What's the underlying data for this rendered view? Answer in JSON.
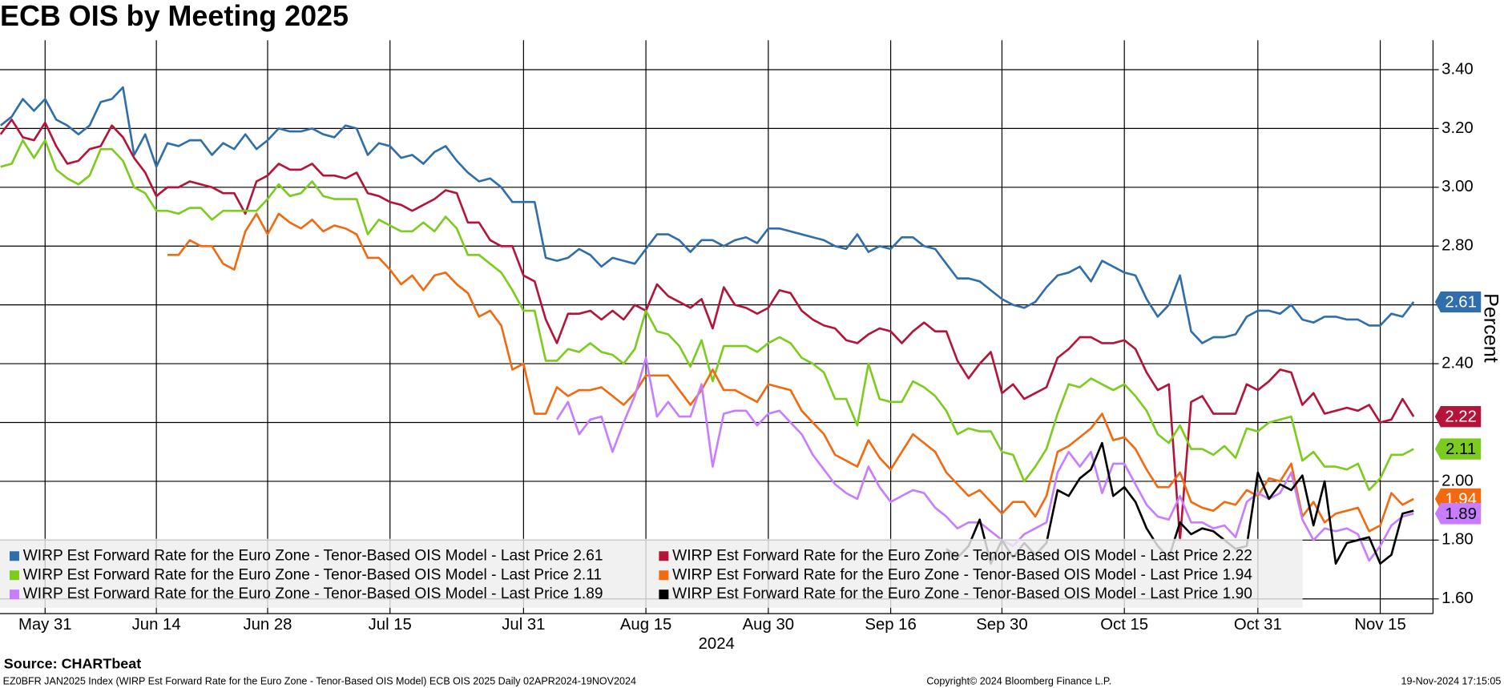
{
  "chart_data": {
    "type": "line",
    "title": "ECB OIS by Meeting 2025",
    "ylabel": "Percent",
    "xlabel": "2024",
    "source": "Source: CHARTbeat",
    "footnote": "EZ0BFR JAN2025 Index (WIRP Est Forward Rate for the Euro Zone - Tenor-Based OIS Model) ECB OIS 2025  Daily 02APR2024-19NOV2024",
    "copyright": "Copyright© 2024 Bloomberg Finance L.P.",
    "timestamp": "19-Nov-2024 17:15:05",
    "yaxis_side": "right",
    "grid": true,
    "legend": "bottom-left",
    "ylim": [
      1.55,
      3.5
    ],
    "yticks": [
      {
        "value": 1.6,
        "label": "1.60"
      },
      {
        "value": 1.8,
        "label": "1.80"
      },
      {
        "value": 2.0,
        "label": "2.00"
      },
      {
        "value": 2.2,
        "label": "2.20"
      },
      {
        "value": 2.4,
        "label": "2.40"
      },
      {
        "value": 2.6,
        "label": "2.60"
      },
      {
        "value": 2.8,
        "label": "2.80"
      },
      {
        "value": 3.0,
        "label": "3.00"
      },
      {
        "value": 3.2,
        "label": "3.20"
      },
      {
        "value": 3.4,
        "label": "3.40"
      }
    ],
    "categories": [
      null,
      null,
      null,
      null,
      "May 31",
      null,
      null,
      null,
      null,
      null,
      null,
      null,
      null,
      null,
      "Jun 14",
      null,
      null,
      null,
      null,
      null,
      null,
      null,
      null,
      null,
      "Jun 28",
      null,
      null,
      null,
      null,
      null,
      null,
      null,
      null,
      null,
      null,
      "Jul 15",
      null,
      null,
      null,
      null,
      null,
      null,
      null,
      null,
      null,
      null,
      null,
      "Jul 31",
      null,
      null,
      null,
      null,
      null,
      null,
      null,
      null,
      null,
      null,
      "Aug 15",
      null,
      null,
      null,
      null,
      null,
      null,
      null,
      null,
      null,
      null,
      "Aug 30",
      null,
      null,
      null,
      null,
      null,
      null,
      null,
      null,
      null,
      null,
      "Sep 16",
      null,
      null,
      null,
      null,
      null,
      null,
      null,
      null,
      null,
      "Sep 30",
      null,
      null,
      null,
      null,
      null,
      null,
      null,
      null,
      null,
      null,
      "Oct 15",
      null,
      null,
      null,
      null,
      null,
      null,
      null,
      null,
      null,
      null,
      null,
      "Oct 31",
      null,
      null,
      null,
      null,
      null,
      null,
      null,
      null,
      null,
      null,
      "Nov 15",
      null,
      null,
      null
    ],
    "series": [
      {
        "name": "WIRP Est Forward Rate for the Euro Zone - Tenor-Based OIS Model - Last Price 2.61",
        "color": "#2f6eaa",
        "last_value_tag": true,
        "values": [
          3.21,
          3.24,
          3.3,
          3.26,
          3.3,
          3.23,
          3.21,
          3.18,
          3.21,
          3.29,
          3.3,
          3.34,
          3.11,
          3.18,
          3.07,
          3.15,
          3.14,
          3.16,
          3.16,
          3.11,
          3.15,
          3.13,
          3.18,
          3.13,
          3.16,
          3.2,
          3.19,
          3.19,
          3.2,
          3.18,
          3.17,
          3.21,
          3.2,
          3.11,
          3.15,
          3.14,
          3.1,
          3.11,
          3.08,
          3.12,
          3.14,
          3.09,
          3.05,
          3.02,
          3.03,
          3.0,
          2.95,
          2.95,
          2.95,
          2.76,
          2.75,
          2.76,
          2.79,
          2.77,
          2.73,
          2.76,
          2.75,
          2.74,
          2.79,
          2.84,
          2.84,
          2.82,
          2.78,
          2.82,
          2.82,
          2.8,
          2.82,
          2.83,
          2.81,
          2.86,
          2.86,
          2.85,
          2.84,
          2.83,
          2.82,
          2.8,
          2.79,
          2.84,
          2.78,
          2.8,
          2.79,
          2.83,
          2.83,
          2.8,
          2.79,
          2.74,
          2.69,
          2.69,
          2.68,
          2.65,
          2.62,
          2.6,
          2.59,
          2.61,
          2.66,
          2.7,
          2.71,
          2.73,
          2.68,
          2.75,
          2.73,
          2.71,
          2.7,
          2.62,
          2.56,
          2.6,
          2.7,
          2.51,
          2.47,
          2.49,
          2.49,
          2.5,
          2.56,
          2.58,
          2.58,
          2.57,
          2.6,
          2.55,
          2.54,
          2.56,
          2.56,
          2.55,
          2.55,
          2.53,
          2.53,
          2.57,
          2.56,
          2.61
        ]
      },
      {
        "name": "WIRP Est Forward Rate for the Euro Zone - Tenor-Based OIS Model - Last Price 2.22",
        "color": "#b5143a",
        "last_value_tag": true,
        "values": [
          3.18,
          3.23,
          3.17,
          3.16,
          3.22,
          3.14,
          3.08,
          3.09,
          3.13,
          3.14,
          3.21,
          3.17,
          3.1,
          3.05,
          2.97,
          3.0,
          3.0,
          3.02,
          3.01,
          3.0,
          2.98,
          2.98,
          2.91,
          3.02,
          3.04,
          3.08,
          3.06,
          3.06,
          3.08,
          3.04,
          3.04,
          3.03,
          3.05,
          2.98,
          2.97,
          2.95,
          2.94,
          2.92,
          2.94,
          2.96,
          2.99,
          2.98,
          2.88,
          2.88,
          2.82,
          2.8,
          2.8,
          2.7,
          2.68,
          2.55,
          2.47,
          2.57,
          2.57,
          2.58,
          2.55,
          2.58,
          2.55,
          2.6,
          2.58,
          2.67,
          2.63,
          2.61,
          2.59,
          2.62,
          2.52,
          2.66,
          2.6,
          2.59,
          2.57,
          2.59,
          2.65,
          2.64,
          2.58,
          2.55,
          2.53,
          2.52,
          2.48,
          2.47,
          2.5,
          2.52,
          2.51,
          2.47,
          2.51,
          2.54,
          2.51,
          2.51,
          2.41,
          2.35,
          2.4,
          2.44,
          2.3,
          2.33,
          2.28,
          2.3,
          2.32,
          2.42,
          2.45,
          2.49,
          2.49,
          2.47,
          2.47,
          2.48,
          2.45,
          2.37,
          2.31,
          2.33,
          1.8,
          2.27,
          2.29,
          2.23,
          2.23,
          2.23,
          2.33,
          2.31,
          2.34,
          2.38,
          2.37,
          2.26,
          2.3,
          2.23,
          2.24,
          2.25,
          2.24,
          2.26,
          2.2,
          2.21,
          2.28,
          2.22
        ]
      },
      {
        "name": "WIRP Est Forward Rate for the Euro Zone - Tenor-Based OIS Model - Last Price 2.11",
        "color": "#7ccc1e",
        "last_value_tag": true,
        "values": [
          3.07,
          3.08,
          3.16,
          3.1,
          3.16,
          3.06,
          3.03,
          3.01,
          3.04,
          3.13,
          3.13,
          3.09,
          3.0,
          2.98,
          2.92,
          2.92,
          2.91,
          2.93,
          2.93,
          2.89,
          2.92,
          2.92,
          2.92,
          2.92,
          2.96,
          3.01,
          2.97,
          2.98,
          3.02,
          2.97,
          2.96,
          2.96,
          2.96,
          2.84,
          2.89,
          2.87,
          2.85,
          2.85,
          2.88,
          2.85,
          2.9,
          2.86,
          2.77,
          2.77,
          2.74,
          2.71,
          2.65,
          2.58,
          2.58,
          2.41,
          2.41,
          2.45,
          2.44,
          2.47,
          2.44,
          2.43,
          2.4,
          2.45,
          2.58,
          2.51,
          2.5,
          2.46,
          2.39,
          2.48,
          2.34,
          2.46,
          2.46,
          2.46,
          2.44,
          2.47,
          2.49,
          2.47,
          2.42,
          2.4,
          2.37,
          2.28,
          2.28,
          2.19,
          2.4,
          2.28,
          2.27,
          2.27,
          2.34,
          2.32,
          2.29,
          2.24,
          2.16,
          2.18,
          2.17,
          2.17,
          2.1,
          2.09,
          2.0,
          2.05,
          2.11,
          2.23,
          2.33,
          2.32,
          2.35,
          2.33,
          2.31,
          2.33,
          2.29,
          2.24,
          2.16,
          2.13,
          2.19,
          2.11,
          2.11,
          2.09,
          2.12,
          2.08,
          2.18,
          2.17,
          2.2,
          2.21,
          2.22,
          2.07,
          2.1,
          2.05,
          2.05,
          2.04,
          2.06,
          1.97,
          2.01,
          2.09,
          2.09,
          2.11
        ]
      },
      {
        "name": "WIRP Est Forward Rate for the Euro Zone - Tenor-Based OIS Model - Last Price 1.94",
        "color": "#f26a10",
        "last_value_tag": true,
        "values": [
          null,
          null,
          null,
          null,
          null,
          null,
          null,
          null,
          null,
          null,
          null,
          null,
          null,
          null,
          null,
          2.77,
          2.77,
          2.82,
          2.8,
          2.8,
          2.74,
          2.72,
          2.85,
          2.91,
          2.84,
          2.91,
          2.88,
          2.86,
          2.89,
          2.85,
          2.87,
          2.86,
          2.84,
          2.76,
          2.76,
          2.72,
          2.67,
          2.7,
          2.65,
          2.7,
          2.71,
          2.67,
          2.64,
          2.56,
          2.58,
          2.53,
          2.38,
          2.4,
          2.23,
          2.23,
          2.32,
          2.29,
          2.31,
          2.31,
          2.32,
          2.29,
          2.26,
          2.3,
          2.36,
          2.36,
          2.36,
          2.31,
          2.26,
          2.31,
          2.38,
          2.31,
          2.31,
          2.29,
          2.27,
          2.33,
          2.32,
          2.31,
          2.24,
          2.2,
          2.16,
          2.09,
          2.07,
          2.05,
          2.14,
          2.08,
          2.04,
          2.1,
          2.16,
          2.13,
          2.1,
          2.03,
          1.99,
          1.95,
          1.97,
          1.93,
          1.89,
          1.93,
          1.93,
          1.88,
          1.95,
          2.1,
          2.12,
          2.15,
          2.18,
          2.23,
          2.14,
          2.15,
          2.11,
          2.04,
          1.98,
          1.98,
          2.03,
          1.93,
          1.91,
          1.9,
          1.93,
          1.92,
          1.97,
          1.95,
          2.01,
          2.0,
          2.06,
          1.88,
          1.93,
          1.86,
          1.89,
          1.9,
          1.91,
          1.83,
          1.85,
          1.96,
          1.92,
          1.94
        ]
      },
      {
        "name": "WIRP Est Forward Rate for the Euro Zone - Tenor-Based OIS Model - Last Price 1.89",
        "color": "#c77dff",
        "last_value_tag": true,
        "values": [
          null,
          null,
          null,
          null,
          null,
          null,
          null,
          null,
          null,
          null,
          null,
          null,
          null,
          null,
          null,
          null,
          null,
          null,
          null,
          null,
          null,
          null,
          null,
          null,
          null,
          null,
          null,
          null,
          null,
          null,
          null,
          null,
          null,
          null,
          null,
          null,
          null,
          null,
          null,
          null,
          null,
          null,
          null,
          null,
          null,
          null,
          null,
          null,
          null,
          null,
          2.21,
          2.27,
          2.16,
          2.21,
          2.22,
          2.1,
          2.2,
          2.29,
          2.42,
          2.22,
          2.27,
          2.22,
          2.22,
          2.33,
          2.05,
          2.23,
          2.24,
          2.24,
          2.19,
          2.23,
          2.24,
          2.2,
          2.16,
          2.09,
          2.04,
          1.99,
          1.96,
          1.94,
          2.05,
          1.98,
          1.93,
          1.95,
          1.97,
          1.96,
          1.91,
          1.88,
          1.84,
          1.86,
          1.86,
          1.83,
          1.8,
          1.78,
          1.82,
          1.84,
          1.86,
          2.03,
          2.1,
          2.05,
          2.1,
          1.96,
          2.06,
          2.06,
          1.99,
          1.92,
          1.88,
          1.87,
          1.95,
          1.86,
          1.86,
          1.84,
          1.85,
          1.81,
          1.93,
          1.96,
          1.94,
          1.96,
          2.03,
          1.87,
          1.8,
          1.84,
          1.83,
          1.84,
          1.82,
          1.73,
          1.78,
          1.85,
          1.88,
          1.89
        ]
      },
      {
        "name": "WIRP Est Forward Rate for the Euro Zone - Tenor-Based OIS Model - Last Price 1.90",
        "color": "#000000",
        "last_value_tag": false,
        "values": [
          null,
          null,
          null,
          null,
          null,
          null,
          null,
          null,
          null,
          null,
          null,
          null,
          null,
          null,
          null,
          null,
          null,
          null,
          null,
          null,
          null,
          null,
          null,
          null,
          null,
          null,
          null,
          null,
          null,
          null,
          null,
          null,
          null,
          null,
          null,
          null,
          null,
          null,
          null,
          null,
          null,
          null,
          null,
          null,
          null,
          null,
          null,
          null,
          null,
          null,
          null,
          null,
          null,
          null,
          null,
          null,
          null,
          null,
          null,
          null,
          null,
          null,
          null,
          null,
          null,
          null,
          null,
          null,
          null,
          null,
          null,
          null,
          null,
          null,
          null,
          null,
          null,
          null,
          null,
          null,
          null,
          null,
          null,
          null,
          null,
          1.77,
          1.74,
          1.78,
          1.87,
          1.72,
          1.8,
          1.74,
          1.79,
          1.75,
          1.79,
          1.97,
          1.95,
          2.01,
          2.04,
          2.13,
          1.95,
          1.98,
          1.93,
          1.84,
          1.78,
          1.74,
          1.86,
          1.82,
          1.84,
          1.83,
          1.8,
          1.77,
          1.78,
          2.03,
          1.94,
          1.99,
          1.97,
          2.02,
          1.85,
          2.0,
          1.72,
          1.79,
          1.8,
          1.81,
          1.72,
          1.75,
          1.89,
          1.9
        ]
      }
    ]
  }
}
